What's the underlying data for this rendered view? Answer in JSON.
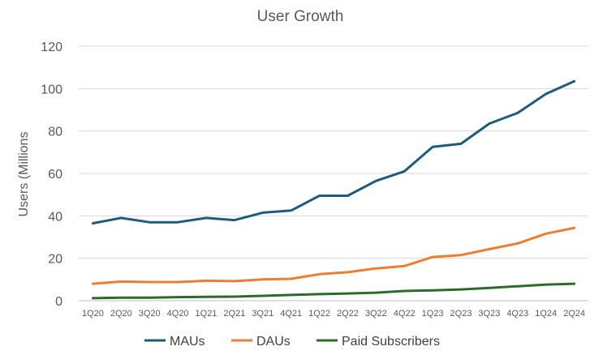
{
  "chart_data": {
    "type": "line",
    "title": "User Growth",
    "ylabel": "Users (Millions",
    "xlabel": "",
    "ylim": [
      0,
      120
    ],
    "yticks": [
      0,
      20,
      40,
      60,
      80,
      100,
      120
    ],
    "grid": "horizontal",
    "legend_position": "bottom",
    "categories": [
      "1Q20",
      "2Q20",
      "3Q20",
      "4Q20",
      "1Q21",
      "2Q21",
      "3Q21",
      "4Q21",
      "1Q22",
      "2Q22",
      "3Q22",
      "4Q22",
      "1Q23",
      "2Q23",
      "3Q23",
      "4Q23",
      "1Q24",
      "2Q24"
    ],
    "series": [
      {
        "name": "MAUs",
        "color": "#1f5c7a",
        "values": [
          36.5,
          39,
          37,
          37,
          39,
          38,
          41.5,
          42.5,
          49.5,
          49.5,
          56.5,
          61,
          72.5,
          74,
          83.5,
          88.5,
          97.5,
          103.5
        ]
      },
      {
        "name": "DAUs",
        "color": "#ed7d31",
        "values": [
          8,
          9,
          8.8,
          8.8,
          9.4,
          9.2,
          10,
          10.3,
          12.5,
          13.4,
          15.2,
          16.3,
          20.6,
          21.5,
          24.3,
          27,
          31.6,
          34.3
        ]
      },
      {
        "name": "Paid Subscribers",
        "color": "#2e6b2b",
        "values": [
          1.2,
          1.4,
          1.4,
          1.7,
          1.8,
          1.9,
          2.3,
          2.7,
          3.1,
          3.4,
          3.8,
          4.6,
          4.9,
          5.3,
          6,
          6.8,
          7.6,
          8
        ]
      }
    ]
  }
}
